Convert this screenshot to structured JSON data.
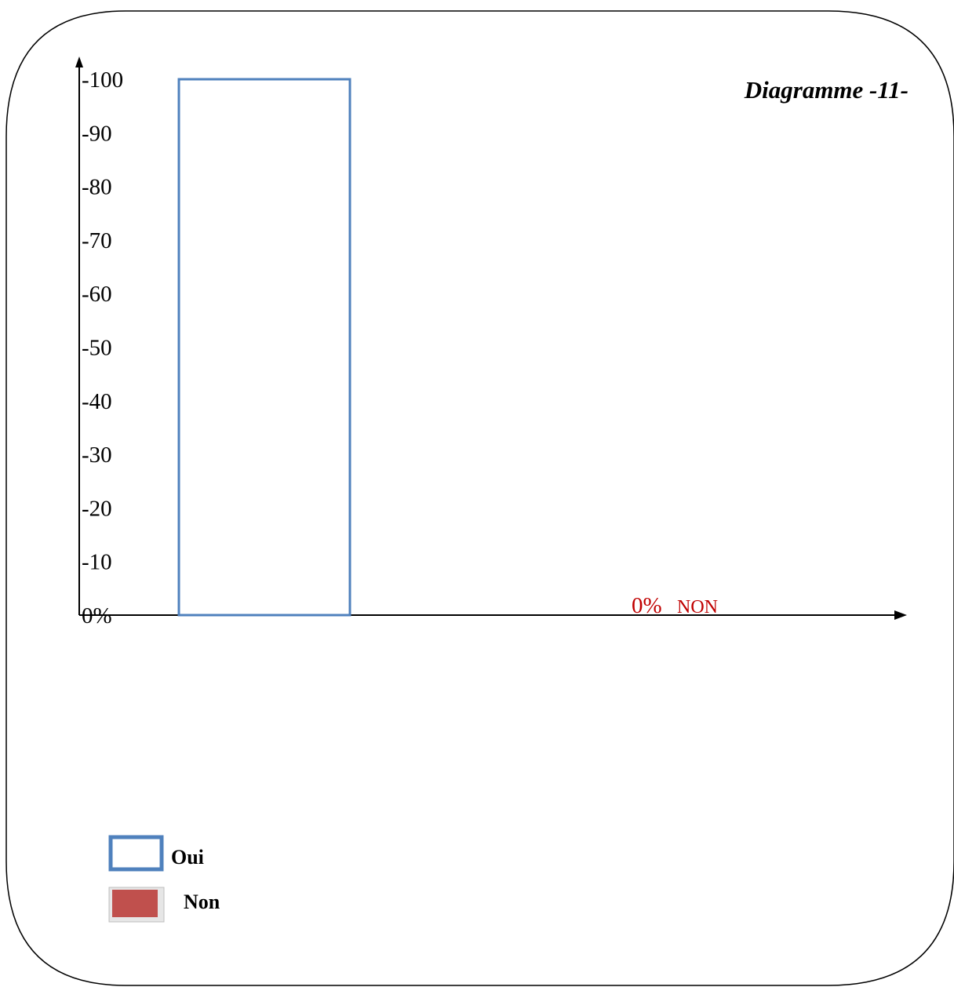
{
  "chart_data": {
    "type": "bar",
    "title": "Diagramme -11-",
    "categories": [
      "Oui",
      "Non"
    ],
    "series": [
      {
        "name": "Oui",
        "values": [
          100,
          null
        ],
        "color": "#4f81bd",
        "style": "outline"
      },
      {
        "name": "Non",
        "values": [
          null,
          0
        ],
        "color": "#c0504d",
        "style": "filled"
      }
    ],
    "values": [
      100,
      0
    ],
    "ylim": [
      0,
      100
    ],
    "yticks": [
      {
        "value": 0,
        "label": "0%"
      },
      {
        "value": 10,
        "label": "-10"
      },
      {
        "value": 20,
        "label": "-20"
      },
      {
        "value": 30,
        "label": "-30"
      },
      {
        "value": 40,
        "label": "-40"
      },
      {
        "value": 50,
        "label": "-50"
      },
      {
        "value": 60,
        "label": "-60"
      },
      {
        "value": 70,
        "label": "-70"
      },
      {
        "value": 80,
        "label": "-80"
      },
      {
        "value": 90,
        "label": "-90"
      },
      {
        "value": 100,
        "label": "-100"
      }
    ],
    "annotation": {
      "value_label": "0%",
      "category_label": "NON",
      "color": "#c00000"
    },
    "legend": {
      "position": "bottom-left",
      "items": [
        {
          "label": "Oui",
          "color": "#4f81bd",
          "style": "outline"
        },
        {
          "label": "Non",
          "color": "#c0504d",
          "style": "filled"
        }
      ]
    },
    "grid": false
  }
}
